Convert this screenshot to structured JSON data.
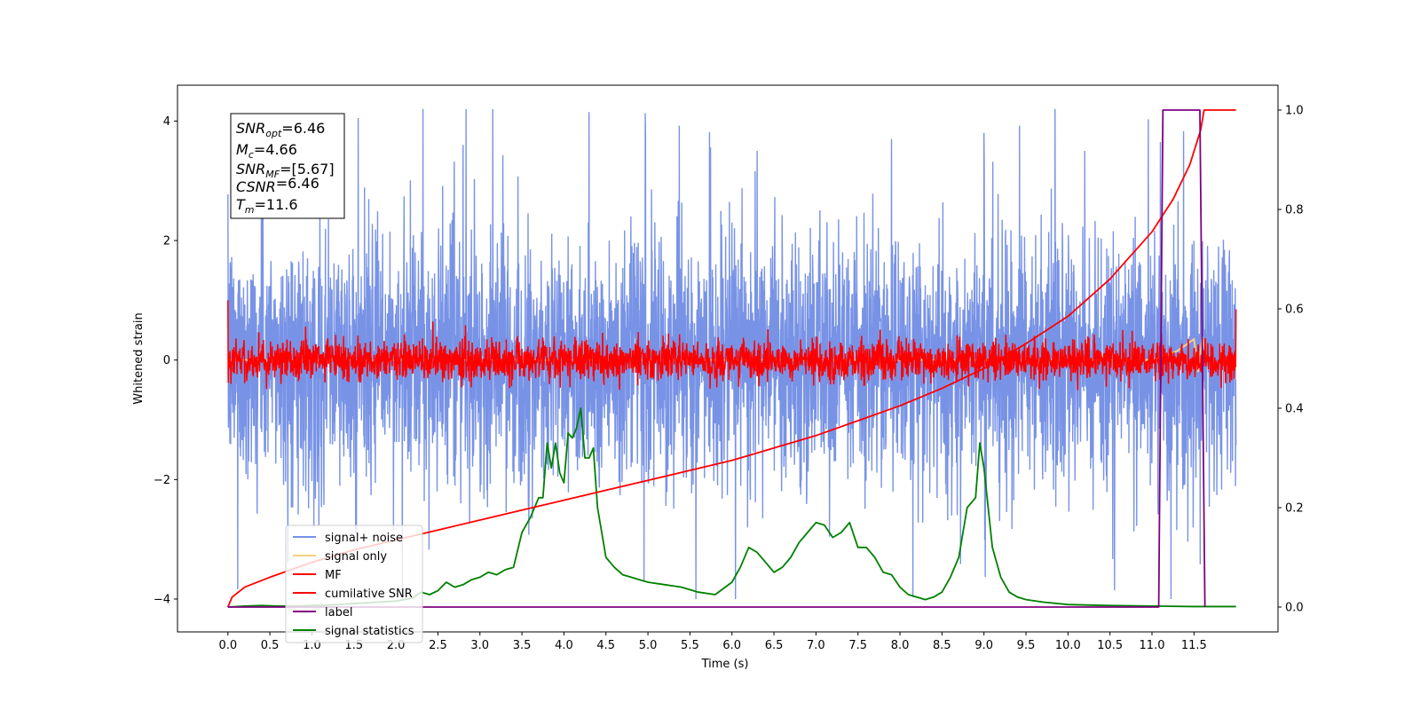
{
  "chart_data": {
    "type": "line",
    "xlabel": "Time (s)",
    "ylabel": "Whitened strain",
    "xlim": [
      -0.6,
      12.5
    ],
    "ylim": [
      -4.55,
      4.6
    ],
    "y2lim": [
      -0.05,
      1.05
    ],
    "x_ticks": [
      "0.0",
      "0.5",
      "1.0",
      "1.5",
      "2.0",
      "2.5",
      "3.0",
      "3.5",
      "4.0",
      "4.5",
      "5.0",
      "5.5",
      "6.0",
      "6.5",
      "7.0",
      "7.5",
      "8.0",
      "8.5",
      "9.0",
      "9.5",
      "10.0",
      "10.5",
      "11.0",
      "11.5"
    ],
    "y_ticks": [
      "-4",
      "-2",
      "0",
      "2",
      "4"
    ],
    "y2_ticks": [
      "0.0",
      "0.2",
      "0.4",
      "0.6",
      "0.8",
      "1.0"
    ],
    "grid": false,
    "legend": {
      "position": "lower-left",
      "entries": [
        {
          "label": "signal+ noise",
          "color": "#7893e6"
        },
        {
          "label": "signal only",
          "color": "#f6cf86"
        },
        {
          "label": "MF",
          "color": "#ff0000"
        },
        {
          "label": "cumilative SNR",
          "color": "#ff0000"
        },
        {
          "label": "label",
          "color": "#800080"
        },
        {
          "label": "signal statistics",
          "color": "#008000"
        }
      ]
    },
    "annotations": [
      {
        "symbol": "SNR",
        "sub": "opt",
        "value": "=6.46"
      },
      {
        "symbol": "M",
        "sub": "c",
        "value": "=4.66"
      },
      {
        "symbol": "SNR",
        "sub": "MF",
        "value": "=[5.67]"
      },
      {
        "symbol": "CSNR",
        "sub": "",
        "value": "=6.46"
      },
      {
        "symbol": "T",
        "sub": "m",
        "value": "=11.6"
      }
    ],
    "series": [
      {
        "name": "signal+ noise",
        "axis": "left",
        "color": "#7893e6",
        "description_range": [
          -4.0,
          4.2
        ],
        "x_range": [
          0.0,
          12.0
        ],
        "peak_points": [
          [
            0.4,
            3.7
          ],
          [
            1.55,
            4.05
          ],
          [
            2.8,
            3.6
          ],
          [
            4.3,
            4.15
          ],
          [
            6.3,
            3.5
          ],
          [
            7.9,
            3.7
          ],
          [
            9.0,
            3.8
          ],
          [
            10.2,
            3.5
          ],
          [
            11.1,
            3.65
          ]
        ]
      },
      {
        "name": "signal only",
        "axis": "left",
        "color": "#f6cf86",
        "x": [
          0.0,
          11.0,
          11.3,
          11.5,
          11.55,
          11.6,
          11.65
        ],
        "y": [
          0.0,
          0.0,
          0.15,
          0.35,
          -0.2,
          0.4,
          0.0
        ]
      },
      {
        "name": "MF",
        "axis": "left",
        "color": "#ff0000",
        "x_range": [
          0.0,
          12.0
        ],
        "amplitude": 0.45,
        "start_value": 1.0,
        "end_value": 0.85
      },
      {
        "name": "cumilative SNR",
        "axis": "right",
        "color": "#ff0000",
        "x": [
          0.0,
          0.05,
          0.2,
          0.5,
          1.0,
          1.5,
          2.0,
          2.5,
          3.0,
          3.5,
          4.0,
          4.5,
          5.0,
          5.5,
          6.0,
          6.5,
          7.0,
          7.5,
          8.0,
          8.5,
          9.0,
          9.5,
          10.0,
          10.5,
          11.0,
          11.25,
          11.45,
          11.58,
          11.62,
          12.0
        ],
        "y": [
          0.0,
          0.02,
          0.04,
          0.06,
          0.09,
          0.115,
          0.135,
          0.155,
          0.175,
          0.195,
          0.215,
          0.235,
          0.255,
          0.275,
          0.295,
          0.32,
          0.345,
          0.375,
          0.405,
          0.44,
          0.48,
          0.53,
          0.585,
          0.66,
          0.755,
          0.82,
          0.89,
          0.96,
          1.0,
          1.0
        ]
      },
      {
        "name": "label",
        "axis": "right",
        "color": "#800080",
        "x": [
          0.0,
          11.08,
          11.13,
          11.57,
          11.63
        ],
        "y": [
          0.0,
          0.0,
          1.0,
          1.0,
          0.0
        ]
      },
      {
        "name": "signal statistics",
        "axis": "right",
        "color": "#008000",
        "x": [
          0.0,
          0.2,
          0.4,
          0.6,
          0.8,
          1.0,
          1.2,
          1.4,
          1.6,
          1.8,
          2.0,
          2.2,
          2.3,
          2.4,
          2.5,
          2.6,
          2.7,
          2.8,
          2.9,
          3.0,
          3.1,
          3.2,
          3.3,
          3.4,
          3.5,
          3.6,
          3.7,
          3.75,
          3.8,
          3.85,
          3.9,
          3.95,
          4.0,
          4.05,
          4.1,
          4.15,
          4.2,
          4.25,
          4.3,
          4.35,
          4.4,
          4.45,
          4.5,
          4.6,
          4.7,
          4.8,
          4.9,
          5.0,
          5.2,
          5.4,
          5.6,
          5.8,
          6.0,
          6.1,
          6.2,
          6.3,
          6.4,
          6.5,
          6.6,
          6.7,
          6.8,
          6.9,
          7.0,
          7.1,
          7.2,
          7.3,
          7.4,
          7.5,
          7.6,
          7.7,
          7.8,
          7.9,
          8.0,
          8.1,
          8.2,
          8.3,
          8.4,
          8.5,
          8.6,
          8.7,
          8.8,
          8.9,
          8.95,
          9.0,
          9.05,
          9.1,
          9.2,
          9.3,
          9.4,
          9.5,
          9.7,
          10.0,
          10.5,
          11.0,
          11.5,
          12.0
        ],
        "y": [
          0.0,
          0.002,
          0.003,
          0.002,
          0.002,
          0.003,
          0.004,
          0.006,
          0.008,
          0.01,
          0.012,
          0.018,
          0.03,
          0.025,
          0.033,
          0.05,
          0.04,
          0.045,
          0.055,
          0.06,
          0.07,
          0.065,
          0.075,
          0.08,
          0.15,
          0.18,
          0.22,
          0.22,
          0.33,
          0.28,
          0.33,
          0.27,
          0.25,
          0.35,
          0.34,
          0.36,
          0.4,
          0.3,
          0.3,
          0.32,
          0.2,
          0.15,
          0.1,
          0.08,
          0.065,
          0.06,
          0.055,
          0.05,
          0.045,
          0.04,
          0.03,
          0.025,
          0.05,
          0.08,
          0.12,
          0.11,
          0.09,
          0.07,
          0.08,
          0.1,
          0.13,
          0.15,
          0.17,
          0.165,
          0.14,
          0.15,
          0.17,
          0.12,
          0.12,
          0.1,
          0.07,
          0.065,
          0.04,
          0.025,
          0.02,
          0.015,
          0.02,
          0.03,
          0.06,
          0.1,
          0.2,
          0.22,
          0.33,
          0.28,
          0.2,
          0.12,
          0.06,
          0.03,
          0.02,
          0.015,
          0.01,
          0.005,
          0.003,
          0.002,
          0.001,
          0.001
        ]
      }
    ]
  }
}
